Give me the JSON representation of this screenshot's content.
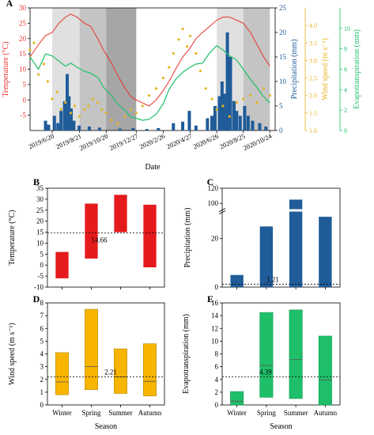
{
  "chart_data": [
    {
      "panel": "A",
      "type": "line",
      "xlabel": "Date",
      "x_ticks": [
        "2019/6/20",
        "2019/8/21",
        "2019/10/20",
        "2019/12/27",
        "2020/2/26",
        "2020/4/27",
        "2020/6/26",
        "2020/8/25",
        "2020/10/24"
      ],
      "axes": [
        {
          "label": "Temperature (°C)",
          "side": "left",
          "ylim": [
            -10,
            30
          ],
          "ticks": [
            -5,
            0,
            5,
            10,
            15,
            20,
            25,
            30
          ],
          "color": "#e8332b"
        },
        {
          "label": "Precipitation (mm)",
          "side": "right",
          "ylim": [
            0,
            25
          ],
          "ticks": [
            0,
            5,
            10,
            15,
            20,
            25
          ],
          "color": "#1f5c99"
        },
        {
          "label": "Wind speed (m s⁻¹)",
          "side": "right",
          "ylim": [
            1.0,
            4.5
          ],
          "ticks": [
            1.0,
            1.5,
            2.0,
            2.5,
            3.0,
            3.5,
            4.0
          ],
          "color": "#e6b422"
        },
        {
          "label": "Evapotranspiration (mm)",
          "side": "right",
          "ylim": [
            0,
            12
          ],
          "ticks": [
            0,
            2,
            4,
            6,
            8,
            10
          ],
          "color": "#1fbf6a"
        }
      ],
      "season_bands": [
        {
          "from": "2019/6/20",
          "to": "2019/8/21",
          "shade": "#e0e0e0"
        },
        {
          "from": "2019/8/21",
          "to": "2019/10/20",
          "shade": "#c4c4c4"
        },
        {
          "from": "2019/10/20",
          "to": "2019/12/27",
          "shade": "#a6a6a6"
        },
        {
          "from": "2020/6/26",
          "to": "2020/8/25",
          "shade": "#e0e0e0"
        },
        {
          "from": "2020/8/25",
          "to": "2020/10/24",
          "shade": "#c4c4c4"
        }
      ],
      "series": {
        "temperature": {
          "points": [
            [
              "2019/5/1",
              14
            ],
            [
              "2019/5/20",
              18
            ],
            [
              "2019/6/5",
              21
            ],
            [
              "2019/6/20",
              22
            ],
            [
              "2019/7/5",
              25
            ],
            [
              "2019/7/20",
              27
            ],
            [
              "2019/8/1",
              28
            ],
            [
              "2019/8/15",
              27
            ],
            [
              "2019/9/1",
              25
            ],
            [
              "2019/9/15",
              24
            ],
            [
              "2019/10/1",
              20
            ],
            [
              "2019/10/15",
              16
            ],
            [
              "2019/11/1",
              12
            ],
            [
              "2019/11/15",
              8
            ],
            [
              "2019/12/1",
              4
            ],
            [
              "2019/12/15",
              1
            ],
            [
              "2019/12/27",
              0
            ],
            [
              "2020/1/10",
              -1
            ],
            [
              "2020/1/25",
              -2
            ],
            [
              "2020/2/10",
              0
            ],
            [
              "2020/2/26",
              3
            ],
            [
              "2020/3/10",
              6
            ],
            [
              "2020/3/25",
              10
            ],
            [
              "2020/4/10",
              14
            ],
            [
              "2020/4/27",
              17
            ],
            [
              "2020/5/10",
              20
            ],
            [
              "2020/5/25",
              22
            ],
            [
              "2020/6/10",
              24
            ],
            [
              "2020/6/26",
              26
            ],
            [
              "2020/7/10",
              27
            ],
            [
              "2020/7/25",
              27
            ],
            [
              "2020/8/10",
              26
            ],
            [
              "2020/8/25",
              25
            ],
            [
              "2020/9/10",
              22
            ],
            [
              "2020/9/25",
              18
            ],
            [
              "2020/10/10",
              14
            ],
            [
              "2020/10/24",
              11
            ]
          ]
        },
        "evapotranspiration": {
          "points": [
            [
              "2019/5/1",
              7.2
            ],
            [
              "2019/5/20",
              6.0
            ],
            [
              "2019/6/5",
              7.5
            ],
            [
              "2019/6/20",
              7.3
            ],
            [
              "2019/7/5",
              6.8
            ],
            [
              "2019/7/20",
              6.3
            ],
            [
              "2019/8/1",
              6.6
            ],
            [
              "2019/8/15",
              6.2
            ],
            [
              "2019/9/1",
              5.8
            ],
            [
              "2019/9/15",
              5.6
            ],
            [
              "2019/10/1",
              5.2
            ],
            [
              "2019/10/15",
              4.2
            ],
            [
              "2019/11/1",
              3.4
            ],
            [
              "2019/11/15",
              2.6
            ],
            [
              "2019/12/1",
              2.0
            ],
            [
              "2019/12/15",
              1.3
            ],
            [
              "2019/12/27",
              1.2
            ],
            [
              "2020/1/10",
              1.0
            ],
            [
              "2020/1/25",
              1.1
            ],
            [
              "2020/2/10",
              1.6
            ],
            [
              "2020/2/26",
              2.6
            ],
            [
              "2020/3/10",
              4.0
            ],
            [
              "2020/3/25",
              5.0
            ],
            [
              "2020/4/10",
              5.7
            ],
            [
              "2020/4/27",
              6.2
            ],
            [
              "2020/5/10",
              6.5
            ],
            [
              "2020/5/25",
              6.6
            ],
            [
              "2020/6/10",
              7.6
            ],
            [
              "2020/6/26",
              8.3
            ],
            [
              "2020/7/10",
              7.9
            ],
            [
              "2020/7/25",
              7.3
            ],
            [
              "2020/8/10",
              6.9
            ],
            [
              "2020/8/25",
              6.0
            ],
            [
              "2020/9/10",
              5.0
            ],
            [
              "2020/9/25",
              4.2
            ],
            [
              "2020/10/10",
              3.3
            ],
            [
              "2020/10/24",
              2.7
            ]
          ]
        },
        "wind_speed": {
          "points": [
            [
              "2019/5/1",
              3.3
            ],
            [
              "2019/5/10",
              3.5
            ],
            [
              "2019/5/20",
              2.6
            ],
            [
              "2019/6/1",
              2.9
            ],
            [
              "2019/6/10",
              2.4
            ],
            [
              "2019/6/20",
              1.9
            ],
            [
              "2019/7/1",
              2.1
            ],
            [
              "2019/7/10",
              1.6
            ],
            [
              "2019/7/20",
              1.8
            ],
            [
              "2019/8/1",
              1.5
            ],
            [
              "2019/8/10",
              1.7
            ],
            [
              "2019/8/21",
              1.4
            ],
            [
              "2019/9/1",
              1.6
            ],
            [
              "2019/9/10",
              1.7
            ],
            [
              "2019/9/20",
              1.9
            ],
            [
              "2019/10/1",
              1.8
            ],
            [
              "2019/10/10",
              1.6
            ],
            [
              "2019/10/20",
              1.5
            ],
            [
              "2019/11/1",
              1.3
            ],
            [
              "2019/11/15",
              1.2
            ],
            [
              "2019/12/1",
              1.4
            ],
            [
              "2019/12/15",
              1.6
            ],
            [
              "2019/12/27",
              1.5
            ],
            [
              "2020/1/10",
              1.7
            ],
            [
              "2020/1/25",
              2.0
            ],
            [
              "2020/2/10",
              2.2
            ],
            [
              "2020/2/26",
              2.5
            ],
            [
              "2020/3/10",
              2.8
            ],
            [
              "2020/3/20",
              3.2
            ],
            [
              "2020/4/1",
              3.6
            ],
            [
              "2020/4/10",
              3.9
            ],
            [
              "2020/4/20",
              3.4
            ],
            [
              "2020/4/27",
              3.7
            ],
            [
              "2020/5/10",
              3.2
            ],
            [
              "2020/5/20",
              2.7
            ],
            [
              "2020/6/1",
              2.2
            ],
            [
              "2020/6/15",
              1.9
            ],
            [
              "2020/6/26",
              1.6
            ],
            [
              "2020/7/10",
              1.7
            ],
            [
              "2020/7/25",
              1.4
            ],
            [
              "2020/8/10",
              1.8
            ],
            [
              "2020/8/25",
              1.9
            ],
            [
              "2020/9/10",
              2.0
            ],
            [
              "2020/9/25",
              1.8
            ],
            [
              "2020/10/10",
              2.2
            ],
            [
              "2020/10/24",
              2.0
            ]
          ]
        },
        "precipitation": {
          "bars": [
            [
              "2019/6/5",
              2
            ],
            [
              "2019/6/12",
              1.2
            ],
            [
              "2019/6/25",
              3
            ],
            [
              "2019/7/3",
              1.5
            ],
            [
              "2019/7/10",
              4
            ],
            [
              "2019/7/18",
              6
            ],
            [
              "2019/7/24",
              11.5
            ],
            [
              "2019/7/28",
              7
            ],
            [
              "2019/8/2",
              4.5
            ],
            [
              "2019/8/8",
              2
            ],
            [
              "2019/8/20",
              1
            ],
            [
              "2019/9/12",
              0.8
            ],
            [
              "2019/10/5",
              0.6
            ],
            [
              "2019/11/20",
              0.4
            ],
            [
              "2019/12/20",
              0.5
            ],
            [
              "2020/1/20",
              0.3
            ],
            [
              "2020/2/15",
              0.5
            ],
            [
              "2020/3/20",
              1.5
            ],
            [
              "2020/4/10",
              1.8
            ],
            [
              "2020/4/25",
              4
            ],
            [
              "2020/5/10",
              1
            ],
            [
              "2020/6/5",
              2.5
            ],
            [
              "2020/6/15",
              3
            ],
            [
              "2020/6/22",
              5
            ],
            [
              "2020/7/2",
              7
            ],
            [
              "2020/7/8",
              10
            ],
            [
              "2020/7/14",
              7.5
            ],
            [
              "2020/7/20",
              20
            ],
            [
              "2020/7/27",
              15
            ],
            [
              "2020/8/4",
              6
            ],
            [
              "2020/8/10",
              4
            ],
            [
              "2020/8/18",
              3
            ],
            [
              "2020/8/28",
              5
            ],
            [
              "2020/9/5",
              3
            ],
            [
              "2020/9/15",
              2
            ],
            [
              "2020/10/1",
              1.5
            ],
            [
              "2020/10/15",
              0.8
            ]
          ]
        }
      }
    },
    {
      "panel": "B",
      "type": "box",
      "categories": [
        "Winter",
        "Spring",
        "Summer",
        "Autumn"
      ],
      "ylabel": "Temperature (°C)",
      "ylim": [
        -10,
        35
      ],
      "ticks": [
        -10,
        -5,
        0,
        5,
        10,
        15,
        20,
        25,
        30,
        35
      ],
      "boxes": [
        [
          -6,
          6
        ],
        [
          3,
          28
        ],
        [
          15,
          32
        ],
        [
          -1,
          27.5
        ]
      ],
      "mean_line": 14.66,
      "mean_label": "14.66",
      "color": "#e41a1c"
    },
    {
      "panel": "C",
      "type": "bar",
      "categories": [
        "Winter",
        "Spring",
        "Summer",
        "Autumn"
      ],
      "ylabel": "Precipitation (mm)",
      "ticks_lower": [
        0,
        20
      ],
      "ticks_upper": [
        100,
        120
      ],
      "values": [
        5,
        25,
        105,
        29
      ],
      "mean_line": 1.21,
      "mean_label": "1.21",
      "color": "#1f5c99"
    },
    {
      "panel": "D",
      "type": "box",
      "categories": [
        "Winter",
        "Spring",
        "Summer",
        "Autumn"
      ],
      "xlabel": "Season",
      "ylabel": "Wind speed (m s⁻¹)",
      "ylim": [
        0,
        8
      ],
      "ticks": [
        0,
        1,
        2,
        3,
        4,
        5,
        6,
        7,
        8
      ],
      "boxes": [
        [
          0.8,
          4.1,
          1.8
        ],
        [
          1.2,
          7.5,
          3.0
        ],
        [
          0.9,
          4.4,
          2.2
        ],
        [
          0.7,
          4.8,
          1.85
        ]
      ],
      "mean_line": 2.21,
      "mean_label": "2.21",
      "color": "#f7b500"
    },
    {
      "panel": "E",
      "type": "box",
      "categories": [
        "Winter",
        "Spring",
        "Summer",
        "Autumn"
      ],
      "xlabel": "Season",
      "ylabel": "Evapotranspiration (mm)",
      "ylim": [
        0,
        16
      ],
      "ticks": [
        0,
        2,
        4,
        6,
        8,
        10,
        12,
        14,
        16
      ],
      "boxes": [
        [
          0,
          2.1,
          0.6
        ],
        [
          1.2,
          14.5,
          6.2
        ],
        [
          1.0,
          14.9,
          7.1
        ],
        [
          0,
          10.8,
          3.9
        ]
      ],
      "mean_line": 4.39,
      "mean_label": "4.39",
      "color": "#1fbf6a"
    }
  ]
}
